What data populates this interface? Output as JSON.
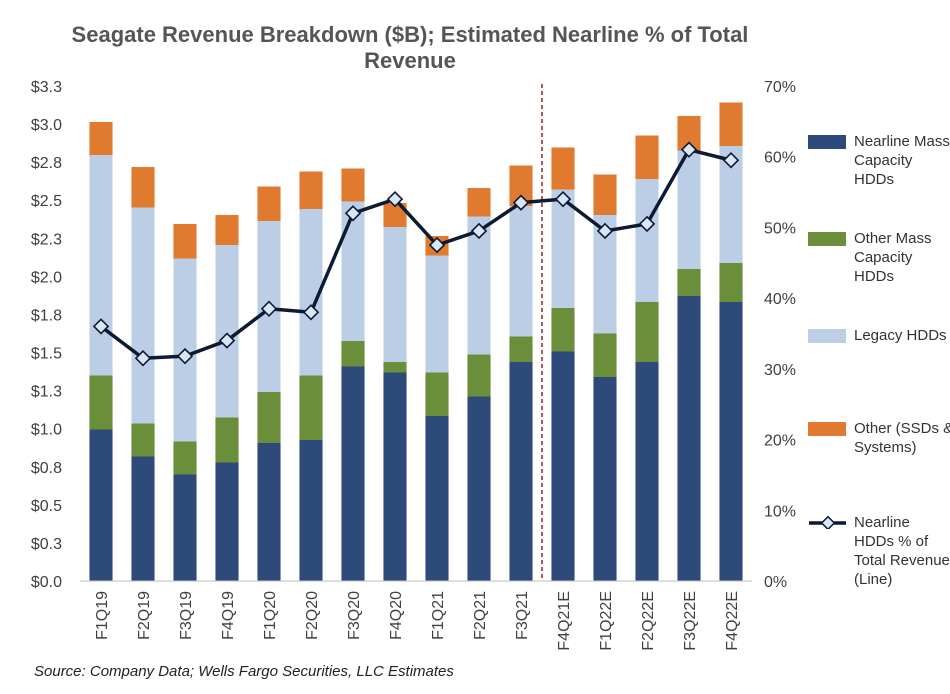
{
  "chart_data": {
    "type": "bar",
    "stacked": true,
    "title": "Seagate Revenue Breakdown ($B); Estimated Nearline % of Total Revenue",
    "categories": [
      "F1Q19",
      "F2Q19",
      "F3Q19",
      "F4Q19",
      "F1Q20",
      "F2Q20",
      "F3Q20",
      "F4Q20",
      "F1Q21",
      "F2Q21",
      "F3Q21",
      "F4Q21E",
      "F1Q22E",
      "F2Q22E",
      "F3Q22E",
      "F4Q22E"
    ],
    "series": [
      {
        "name": "Nearline Mass Capacity HDDs",
        "color": "#2e4a7a",
        "values": [
          1.01,
          0.83,
          0.71,
          0.79,
          0.92,
          0.94,
          1.43,
          1.39,
          1.1,
          1.23,
          1.46,
          1.53,
          1.36,
          1.46,
          1.9,
          1.86
        ]
      },
      {
        "name": "Other Mass Capacity HDDs",
        "color": "#6b8e3a",
        "values": [
          0.36,
          0.22,
          0.22,
          0.3,
          0.34,
          0.43,
          0.17,
          0.07,
          0.29,
          0.28,
          0.17,
          0.29,
          0.29,
          0.4,
          0.18,
          0.26
        ]
      },
      {
        "name": "Legacy HDDs",
        "color": "#bccde6",
        "values": [
          1.47,
          1.44,
          1.22,
          1.15,
          1.14,
          1.11,
          0.93,
          0.9,
          0.78,
          0.92,
          0.87,
          0.79,
          0.79,
          0.82,
          0.79,
          0.78
        ]
      },
      {
        "name": "Other (SSDs & Systems)",
        "color": "#e07a2e",
        "values": [
          0.22,
          0.27,
          0.23,
          0.2,
          0.23,
          0.25,
          0.22,
          0.16,
          0.13,
          0.19,
          0.27,
          0.28,
          0.27,
          0.29,
          0.23,
          0.29
        ]
      }
    ],
    "line": {
      "name": "Nearline HDDs % of Total Revenue (Line)",
      "color": "#0d1a33",
      "values": [
        36,
        31.5,
        31.8,
        34,
        38.5,
        38,
        52,
        54,
        47.5,
        49.5,
        53.5,
        54,
        49.5,
        50.5,
        61,
        59.5
      ]
    },
    "ylim": [
      0,
      3.3
    ],
    "y_ticks": [
      "$0.0",
      "$0.3",
      "$0.5",
      "$0.8",
      "$1.0",
      "$1.3",
      "$1.5",
      "$1.8",
      "$2.0",
      "$2.3",
      "$2.5",
      "$2.8",
      "$3.0",
      "$3.3"
    ],
    "y2lim": [
      0,
      70
    ],
    "y2_ticks": [
      "0%",
      "10%",
      "20%",
      "30%",
      "40%",
      "50%",
      "60%",
      "70%"
    ],
    "forecast_divider_after": "F3Q21",
    "legend_position": "right"
  },
  "legend": [
    {
      "label": "Nearline Mass Capacity HDDs",
      "color": "#2e4a7a",
      "kind": "box"
    },
    {
      "label": "Other Mass Capacity HDDs",
      "color": "#6b8e3a",
      "kind": "box"
    },
    {
      "label": "Legacy HDDs",
      "color": "#bccde6",
      "kind": "box"
    },
    {
      "label": "Other (SSDs & Systems)",
      "color": "#e07a2e",
      "kind": "box"
    },
    {
      "label": "Nearline HDDs % of Total Revenue (Line)",
      "color": "#0d1a33",
      "kind": "line"
    }
  ],
  "source": "Source: Company Data; Wells Fargo Securities, LLC Estimates"
}
